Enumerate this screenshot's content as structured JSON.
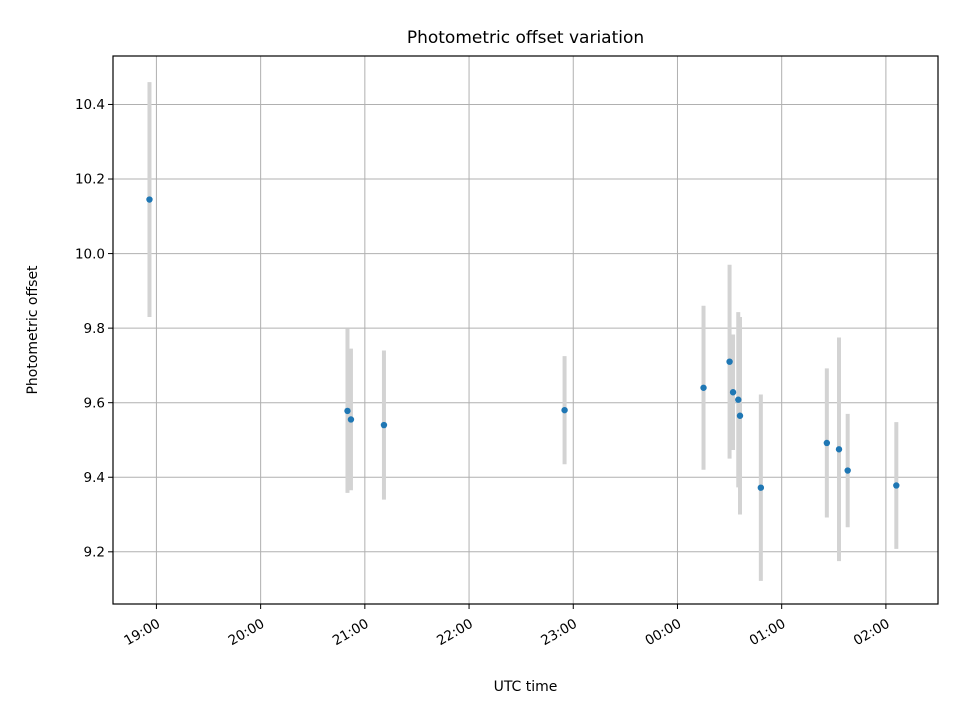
{
  "chart_data": {
    "type": "scatter",
    "title": "Photometric offset variation",
    "xlabel": "UTC time",
    "ylabel": "Photometric offset",
    "grid": true,
    "x_tick_labels": [
      "19:00",
      "20:00",
      "21:00",
      "22:00",
      "23:00",
      "00:00",
      "01:00",
      "02:00"
    ],
    "y_tick_labels": [
      "9.2",
      "9.4",
      "9.6",
      "9.8",
      "10.0",
      "10.2",
      "10.4"
    ],
    "xlim": [
      "18:35",
      "02:30"
    ],
    "ylim": [
      9.06,
      10.53
    ],
    "colors": {
      "points": "#1f77b4",
      "errorbars": "#d3d3d3",
      "grid": "#b0b0b0"
    },
    "points": [
      {
        "x": "18:56",
        "y": 10.145,
        "err": 0.315
      },
      {
        "x": "20:50",
        "y": 9.578,
        "err": 0.22
      },
      {
        "x": "20:52",
        "y": 9.555,
        "err": 0.19
      },
      {
        "x": "21:11",
        "y": 9.54,
        "err": 0.2
      },
      {
        "x": "22:55",
        "y": 9.58,
        "err": 0.145
      },
      {
        "x": "00:15",
        "y": 9.64,
        "err": 0.22
      },
      {
        "x": "00:30",
        "y": 9.71,
        "err": 0.26
      },
      {
        "x": "00:32",
        "y": 9.628,
        "err": 0.155
      },
      {
        "x": "00:35",
        "y": 9.608,
        "err": 0.235
      },
      {
        "x": "00:36",
        "y": 9.565,
        "err": 0.265
      },
      {
        "x": "00:48",
        "y": 9.372,
        "err": 0.25
      },
      {
        "x": "01:26",
        "y": 9.492,
        "err": 0.2
      },
      {
        "x": "01:33",
        "y": 9.475,
        "err": 0.3
      },
      {
        "x": "01:38",
        "y": 9.418,
        "err": 0.152
      },
      {
        "x": "02:06",
        "y": 9.378,
        "err": 0.17
      }
    ]
  }
}
